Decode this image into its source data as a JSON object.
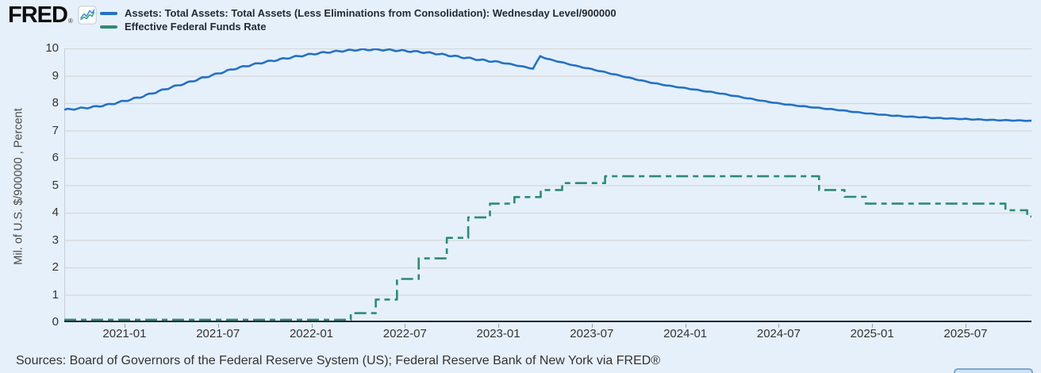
{
  "header": {
    "logo_text": "FRED",
    "logo_registered": "®",
    "legend": [
      {
        "label": "Assets: Total Assets: Total Assets (Less Eliminations from Consolidation): Wednesday Level/900000",
        "color": "#2571c4",
        "dash": "solid"
      },
      {
        "label": "Effective Federal Funds Rate",
        "color": "#2d8b74",
        "dash": "dashed"
      }
    ]
  },
  "chart_data": {
    "type": "line",
    "title": "",
    "xlabel": "",
    "ylabel": "Mil. of U.S. $/900000 , Percent",
    "ylim": [
      0,
      10
    ],
    "grid": "horizontal",
    "legend_position": "top",
    "y_ticks": [
      10,
      9,
      8,
      7,
      6,
      5,
      4,
      3,
      2,
      1,
      0
    ],
    "x_ticks": [
      {
        "label": "2021-01",
        "date": "2021-01-01"
      },
      {
        "label": "2021-07",
        "date": "2021-07-01"
      },
      {
        "label": "2022-01",
        "date": "2022-01-01"
      },
      {
        "label": "2022-07",
        "date": "2022-07-01"
      },
      {
        "label": "2023-01",
        "date": "2023-01-01"
      },
      {
        "label": "2023-07",
        "date": "2023-07-01"
      },
      {
        "label": "2024-01",
        "date": "2024-01-01"
      },
      {
        "label": "2024-07",
        "date": "2024-07-01"
      },
      {
        "label": "2025-01",
        "date": "2025-01-01"
      },
      {
        "label": "2025-07",
        "date": "2025-07-01"
      }
    ],
    "x_range": {
      "start": "2020-09-05",
      "end": "2025-11-08"
    },
    "series": [
      {
        "name": "Assets: Total Assets: Total Assets (Less Eliminations from Consolidation): Wednesday Level/900000",
        "color": "#2571c4",
        "style": "solid",
        "interpolation": "wiggly-line",
        "wiggle_amplitude": 0.028,
        "points": [
          [
            "2020-09-05",
            7.76
          ],
          [
            "2020-10-01",
            7.8
          ],
          [
            "2020-11-01",
            7.86
          ],
          [
            "2020-12-01",
            7.95
          ],
          [
            "2021-01-01",
            8.08
          ],
          [
            "2021-02-01",
            8.22
          ],
          [
            "2021-03-01",
            8.4
          ],
          [
            "2021-04-01",
            8.58
          ],
          [
            "2021-05-01",
            8.74
          ],
          [
            "2021-06-01",
            8.92
          ],
          [
            "2021-07-01",
            9.08
          ],
          [
            "2021-08-01",
            9.25
          ],
          [
            "2021-09-01",
            9.38
          ],
          [
            "2021-10-01",
            9.5
          ],
          [
            "2021-11-01",
            9.6
          ],
          [
            "2021-12-01",
            9.7
          ],
          [
            "2022-01-01",
            9.79
          ],
          [
            "2022-02-01",
            9.86
          ],
          [
            "2022-03-01",
            9.91
          ],
          [
            "2022-04-01",
            9.95
          ],
          [
            "2022-05-01",
            9.96
          ],
          [
            "2022-06-01",
            9.94
          ],
          [
            "2022-07-01",
            9.91
          ],
          [
            "2022-08-01",
            9.87
          ],
          [
            "2022-09-01",
            9.81
          ],
          [
            "2022-10-01",
            9.73
          ],
          [
            "2022-11-01",
            9.65
          ],
          [
            "2022-12-01",
            9.57
          ],
          [
            "2023-01-01",
            9.5
          ],
          [
            "2023-02-01",
            9.4
          ],
          [
            "2023-03-08",
            9.26
          ],
          [
            "2023-03-22",
            9.72
          ],
          [
            "2023-04-05",
            9.62
          ],
          [
            "2023-05-01",
            9.5
          ],
          [
            "2023-06-01",
            9.36
          ],
          [
            "2023-07-01",
            9.24
          ],
          [
            "2023-08-01",
            9.11
          ],
          [
            "2023-09-01",
            8.98
          ],
          [
            "2023-10-01",
            8.85
          ],
          [
            "2023-11-01",
            8.73
          ],
          [
            "2023-12-01",
            8.63
          ],
          [
            "2024-01-01",
            8.55
          ],
          [
            "2024-02-01",
            8.46
          ],
          [
            "2024-03-01",
            8.38
          ],
          [
            "2024-04-01",
            8.28
          ],
          [
            "2024-05-01",
            8.18
          ],
          [
            "2024-06-01",
            8.08
          ],
          [
            "2024-07-01",
            7.99
          ],
          [
            "2024-08-01",
            7.92
          ],
          [
            "2024-09-01",
            7.86
          ],
          [
            "2024-10-01",
            7.8
          ],
          [
            "2024-11-01",
            7.74
          ],
          [
            "2024-12-01",
            7.67
          ],
          [
            "2025-01-01",
            7.61
          ],
          [
            "2025-02-01",
            7.56
          ],
          [
            "2025-03-01",
            7.52
          ],
          [
            "2025-04-01",
            7.49
          ],
          [
            "2025-05-01",
            7.46
          ],
          [
            "2025-06-01",
            7.44
          ],
          [
            "2025-07-01",
            7.42
          ],
          [
            "2025-08-01",
            7.4
          ],
          [
            "2025-09-01",
            7.38
          ],
          [
            "2025-10-01",
            7.37
          ],
          [
            "2025-11-08",
            7.36
          ]
        ]
      },
      {
        "name": "Effective Federal Funds Rate",
        "color": "#2d8b74",
        "style": "dashed",
        "interpolation": "step-after",
        "points": [
          [
            "2020-09-05",
            0.09
          ],
          [
            "2022-03-17",
            0.33
          ],
          [
            "2022-05-05",
            0.83
          ],
          [
            "2022-06-16",
            1.58
          ],
          [
            "2022-07-28",
            2.33
          ],
          [
            "2022-09-22",
            3.08
          ],
          [
            "2022-11-03",
            3.83
          ],
          [
            "2022-12-15",
            4.33
          ],
          [
            "2023-02-02",
            4.57
          ],
          [
            "2023-03-23",
            4.83
          ],
          [
            "2023-05-04",
            5.08
          ],
          [
            "2023-07-27",
            5.33
          ],
          [
            "2024-09-19",
            4.83
          ],
          [
            "2024-11-08",
            4.58
          ],
          [
            "2024-12-19",
            4.33
          ],
          [
            "2025-09-18",
            4.09
          ],
          [
            "2025-10-30",
            3.86
          ]
        ]
      }
    ]
  },
  "footer": {
    "sources": "Sources: Board of Governors of the Federal Reserve System (US); Federal Reserve Bank of New York via FRED®"
  }
}
